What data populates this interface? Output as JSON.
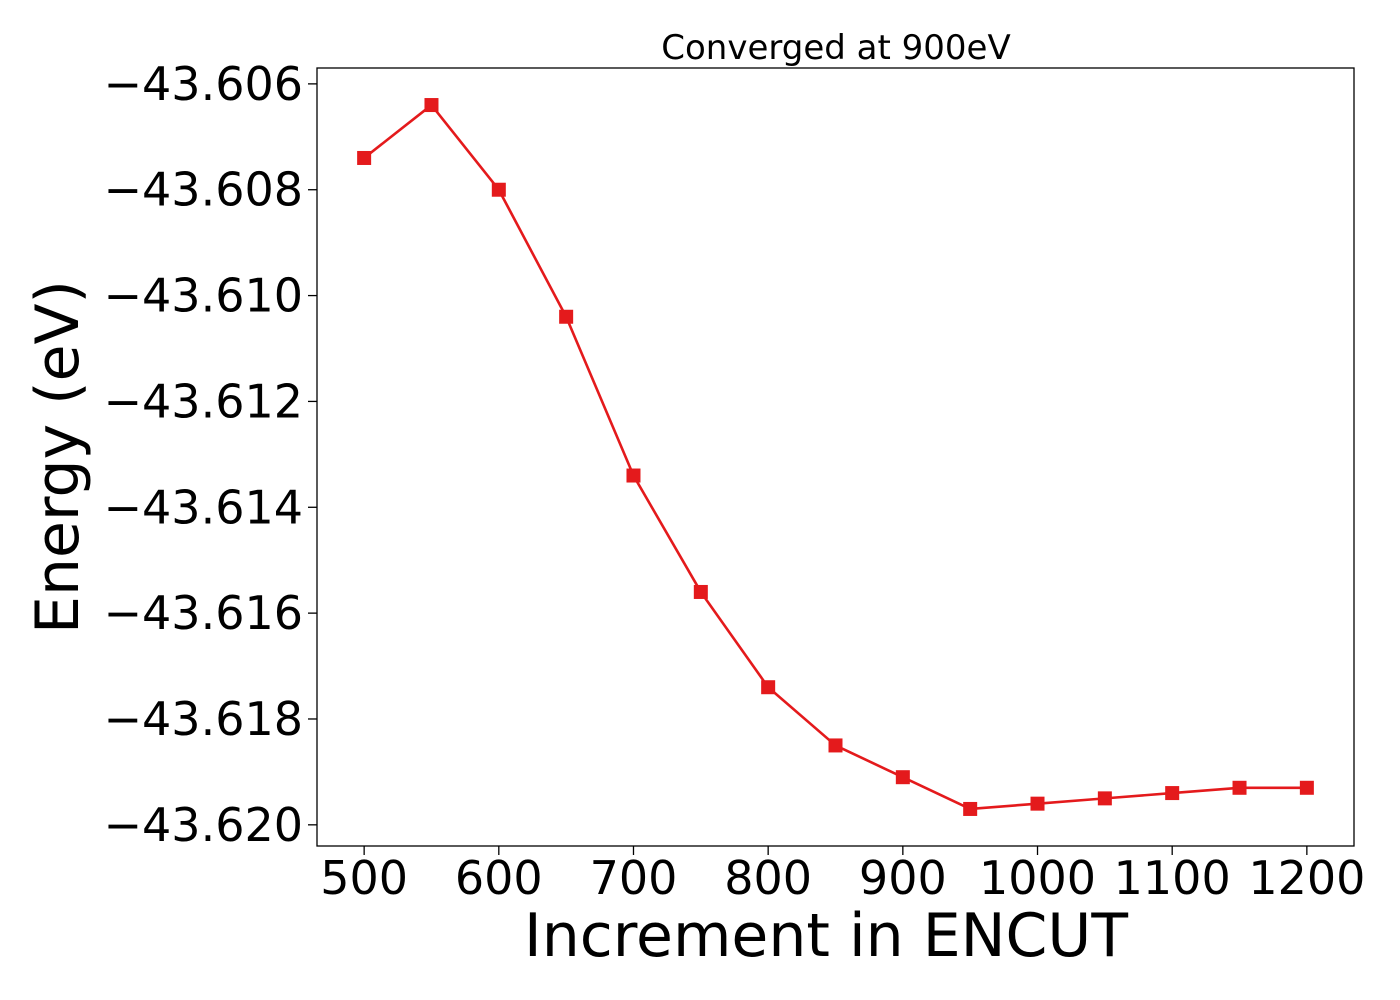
{
  "chart_data": {
    "type": "line",
    "title": "Converged at 900eV",
    "xlabel": "Increment in ENCUT",
    "ylabel": "Energy (eV)",
    "x": [
      500,
      550,
      600,
      650,
      700,
      750,
      800,
      850,
      900,
      950,
      1000,
      1050,
      1100,
      1150,
      1200
    ],
    "series": [
      {
        "values": [
          -43.6074,
          -43.6064,
          -43.608,
          -43.6104,
          -43.6134,
          -43.6156,
          -43.6174,
          -43.6185,
          -43.6191,
          -43.6197,
          -43.6196,
          -43.6195,
          -43.6194,
          -43.6193,
          -43.6193
        ],
        "color": "#e41a1c",
        "marker": "square"
      }
    ],
    "xlim": [
      465,
      1235
    ],
    "ylim": [
      -43.6204,
      -43.6057
    ],
    "xticks": [
      500,
      600,
      700,
      800,
      900,
      1000,
      1100,
      1200
    ],
    "xtick_labels": [
      "500",
      "600",
      "700",
      "800",
      "900",
      "1000",
      "1100",
      "1200"
    ],
    "yticks": [
      -43.606,
      -43.608,
      -43.61,
      -43.612,
      -43.614,
      -43.616,
      -43.618,
      -43.62
    ],
    "ytick_labels": [
      "−43.606",
      "−43.608",
      "−43.610",
      "−43.612",
      "−43.614",
      "−43.616",
      "−43.618",
      "−43.620"
    ],
    "grid": false,
    "legend": "none"
  }
}
